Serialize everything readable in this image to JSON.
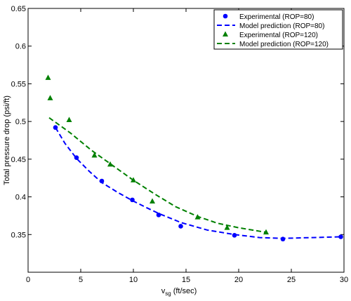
{
  "chart_data": {
    "type": "scatter",
    "xlabel_main": "v",
    "xlabel_sub": "sg",
    "xlabel_unit": " (ft/sec)",
    "ylabel": "Total pressure drop (psi/ft)",
    "xlim": [
      0,
      30
    ],
    "ylim": [
      0.3,
      0.65
    ],
    "x_ticks": [
      "0",
      "5",
      "10",
      "15",
      "20",
      "25",
      "30"
    ],
    "y_ticks": [
      "0.35",
      "0.4",
      "0.45",
      "0.5",
      "0.55",
      "0.6",
      "0.65"
    ],
    "grid": false,
    "legend_position": "top-right",
    "legend": [
      "Experimental (ROP=80)",
      "Model prediction (ROP=80)",
      "Experimental (ROP=120)",
      "Model prediction (ROP=120)"
    ],
    "series": [
      {
        "name": "Experimental (ROP=80)",
        "kind": "marker-circle",
        "color": "#0000ff",
        "x": [
          2.6,
          4.6,
          7.0,
          9.9,
          12.4,
          14.5,
          19.6,
          24.2,
          29.7
        ],
        "y": [
          0.492,
          0.452,
          0.421,
          0.396,
          0.376,
          0.361,
          0.349,
          0.344,
          0.347
        ]
      },
      {
        "name": "Model prediction (ROP=80)",
        "kind": "dashed-line",
        "color": "#0000ff",
        "x": [
          2.6,
          3.5,
          4.6,
          5.8,
          7.0,
          8.5,
          9.9,
          11.2,
          12.4,
          14.5,
          17.0,
          19.6,
          22.0,
          24.2,
          27.0,
          29.7
        ],
        "y": [
          0.492,
          0.471,
          0.451,
          0.434,
          0.419,
          0.406,
          0.395,
          0.386,
          0.378,
          0.366,
          0.356,
          0.35,
          0.346,
          0.345,
          0.346,
          0.347
        ]
      },
      {
        "name": "Experimental (ROP=120)",
        "kind": "marker-triangle",
        "color": "#008000",
        "x": [
          1.9,
          2.1,
          3.9,
          6.3,
          7.8,
          10.0,
          11.8,
          16.1,
          18.9,
          22.6
        ],
        "y": [
          0.558,
          0.531,
          0.502,
          0.455,
          0.443,
          0.422,
          0.394,
          0.373,
          0.359,
          0.353
        ]
      },
      {
        "name": "Model prediction (ROP=120)",
        "kind": "dashed-line",
        "color": "#008000",
        "x": [
          2.0,
          4.0,
          6.0,
          8.0,
          10.0,
          12.0,
          14.0,
          16.1,
          18.0,
          20.0,
          22.6
        ],
        "y": [
          0.505,
          0.485,
          0.462,
          0.442,
          0.422,
          0.404,
          0.387,
          0.374,
          0.365,
          0.359,
          0.353
        ]
      }
    ]
  }
}
